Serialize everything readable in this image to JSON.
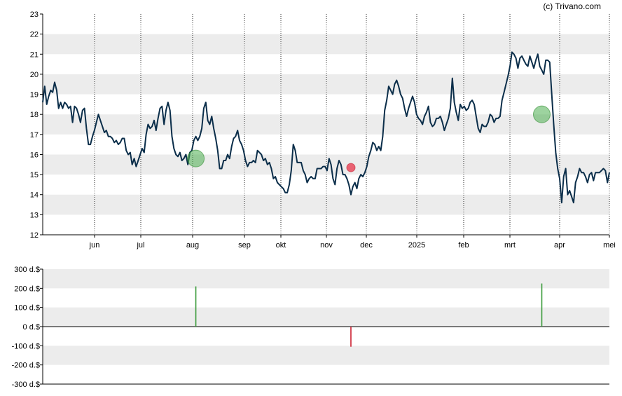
{
  "credit": "(c) Trivano.com",
  "colors": {
    "line": "#0b2e4a",
    "band": "#ececec",
    "buy": "#4caf50",
    "sell": "#e8344a",
    "buy_bar": "#3b9b3b",
    "sell_bar": "#cc2233"
  },
  "chart_data": [
    {
      "type": "line",
      "title": "",
      "ylim": [
        12,
        23
      ],
      "yticks": [
        "12",
        "13",
        "14",
        "15",
        "16",
        "17",
        "18",
        "19",
        "20",
        "21",
        "22",
        "23"
      ],
      "grid": "alternating horizontal bands, dotted vertical month lines",
      "xticks": [
        "jun",
        "jul",
        "aug",
        "sep",
        "okt",
        "nov",
        "dec",
        "2025",
        "feb",
        "mrt",
        "apr",
        "mei"
      ],
      "series": [
        {
          "values": [
            18.6,
            19.4,
            18.5,
            18.9,
            19.2,
            19.1,
            19.6,
            19.2,
            18.3,
            18.6,
            18.3,
            18.6,
            18.5,
            18.3,
            18.4,
            17.6,
            18.4,
            18.3,
            18.0,
            17.6,
            18.2,
            18.3,
            17.3,
            16.5,
            16.5,
            16.9,
            17.2,
            17.6,
            18.0,
            17.7,
            17.4,
            17.1,
            17.2,
            16.9,
            16.9,
            16.8,
            16.6,
            16.7,
            16.5,
            16.6,
            16.8,
            16.8,
            16.2,
            16.0,
            16.1,
            15.5,
            15.8,
            15.4,
            15.7,
            16.0,
            16.3,
            16.1,
            17.0,
            17.5,
            17.3,
            17.4,
            17.7,
            17.2,
            17.8,
            18.3,
            18.4,
            17.5,
            18.2,
            18.6,
            18.2,
            16.9,
            16.3,
            16.0,
            15.9,
            16.1,
            15.7,
            15.8,
            16.0,
            15.5,
            16.1,
            16.2,
            16.7,
            16.9,
            16.7,
            16.9,
            17.3,
            18.3,
            18.6,
            17.7,
            17.5,
            17.9,
            17.3,
            16.8,
            16.2,
            15.3,
            15.3,
            15.7,
            15.7,
            16.0,
            15.8,
            16.4,
            16.8,
            16.9,
            17.2,
            16.7,
            16.5,
            16.2,
            15.7,
            15.4,
            15.6,
            15.6,
            15.7,
            15.6,
            16.2,
            16.1,
            16.0,
            15.7,
            15.8,
            15.5,
            15.6,
            15.3,
            14.8,
            14.9,
            14.6,
            14.5,
            14.4,
            14.3,
            14.1,
            14.1,
            14.5,
            15.2,
            16.5,
            16.2,
            15.6,
            15.6,
            15.6,
            15.2,
            15.0,
            14.6,
            14.8,
            14.9,
            14.8,
            14.8,
            15.3,
            15.3,
            15.3,
            15.4,
            15.4,
            15.2,
            15.8,
            15.5,
            14.8,
            14.5,
            15.3,
            15.7,
            15.5,
            15.0,
            15.0,
            14.8,
            14.5,
            14.0,
            14.4,
            14.6,
            14.3,
            14.8,
            15.0,
            14.9,
            15.1,
            15.4,
            15.9,
            16.2,
            16.6,
            16.5,
            16.2,
            16.4,
            16.2,
            16.9,
            18.2,
            18.7,
            19.4,
            19.2,
            19.0,
            19.5,
            19.7,
            19.4,
            19.0,
            18.8,
            18.3,
            17.9,
            18.3,
            18.6,
            18.9,
            18.6,
            18.0,
            17.8,
            17.7,
            17.5,
            17.9,
            18.1,
            18.4,
            17.6,
            17.4,
            17.5,
            17.8,
            17.8,
            17.9,
            17.6,
            17.2,
            17.5,
            17.8,
            18.3,
            19.8,
            18.6,
            18.1,
            17.7,
            18.5,
            18.3,
            18.4,
            18.2,
            18.3,
            18.6,
            18.7,
            18.5,
            17.9,
            17.3,
            17.1,
            17.5,
            17.4,
            17.4,
            17.6,
            18.0,
            17.9,
            17.6,
            17.8,
            17.8,
            17.9,
            18.7,
            19.1,
            19.5,
            19.9,
            20.4,
            21.1,
            21.0,
            20.8,
            20.3,
            20.8,
            20.9,
            20.7,
            20.5,
            20.4,
            20.9,
            20.6,
            20.3,
            20.7,
            21.0,
            20.4,
            20.2,
            20.0,
            20.7,
            20.7,
            20.6,
            19.0,
            17.5,
            16.1,
            15.3,
            14.8,
            13.6,
            14.9,
            15.3,
            14.0,
            14.2,
            13.9,
            13.6,
            14.6,
            14.9,
            15.3,
            15.1,
            15.1,
            14.9,
            14.6,
            15.0,
            15.1,
            14.7,
            15.1,
            15.1,
            15.1,
            15.2,
            15.3,
            15.2,
            14.6,
            15.1
          ]
        }
      ],
      "signals": [
        {
          "kind": "buy",
          "index": 77,
          "value": 15.8
        },
        {
          "kind": "sell",
          "index": 155,
          "value": 15.35
        },
        {
          "kind": "buy",
          "index": 251,
          "value": 18.0
        }
      ]
    },
    {
      "type": "bar",
      "title": "",
      "ylim": [
        -300,
        300
      ],
      "yticks": [
        "300 d.$",
        "200 d.$",
        "100 d.$",
        "0 d.$",
        "-100 d.$",
        "-200 d.$",
        "-300 d.$"
      ],
      "grid": "alternating horizontal bands",
      "series": [
        {
          "kind": "buy",
          "index": 77,
          "value": 210
        },
        {
          "kind": "sell",
          "index": 155,
          "value": -105
        },
        {
          "kind": "buy",
          "index": 251,
          "value": 225
        }
      ]
    }
  ]
}
